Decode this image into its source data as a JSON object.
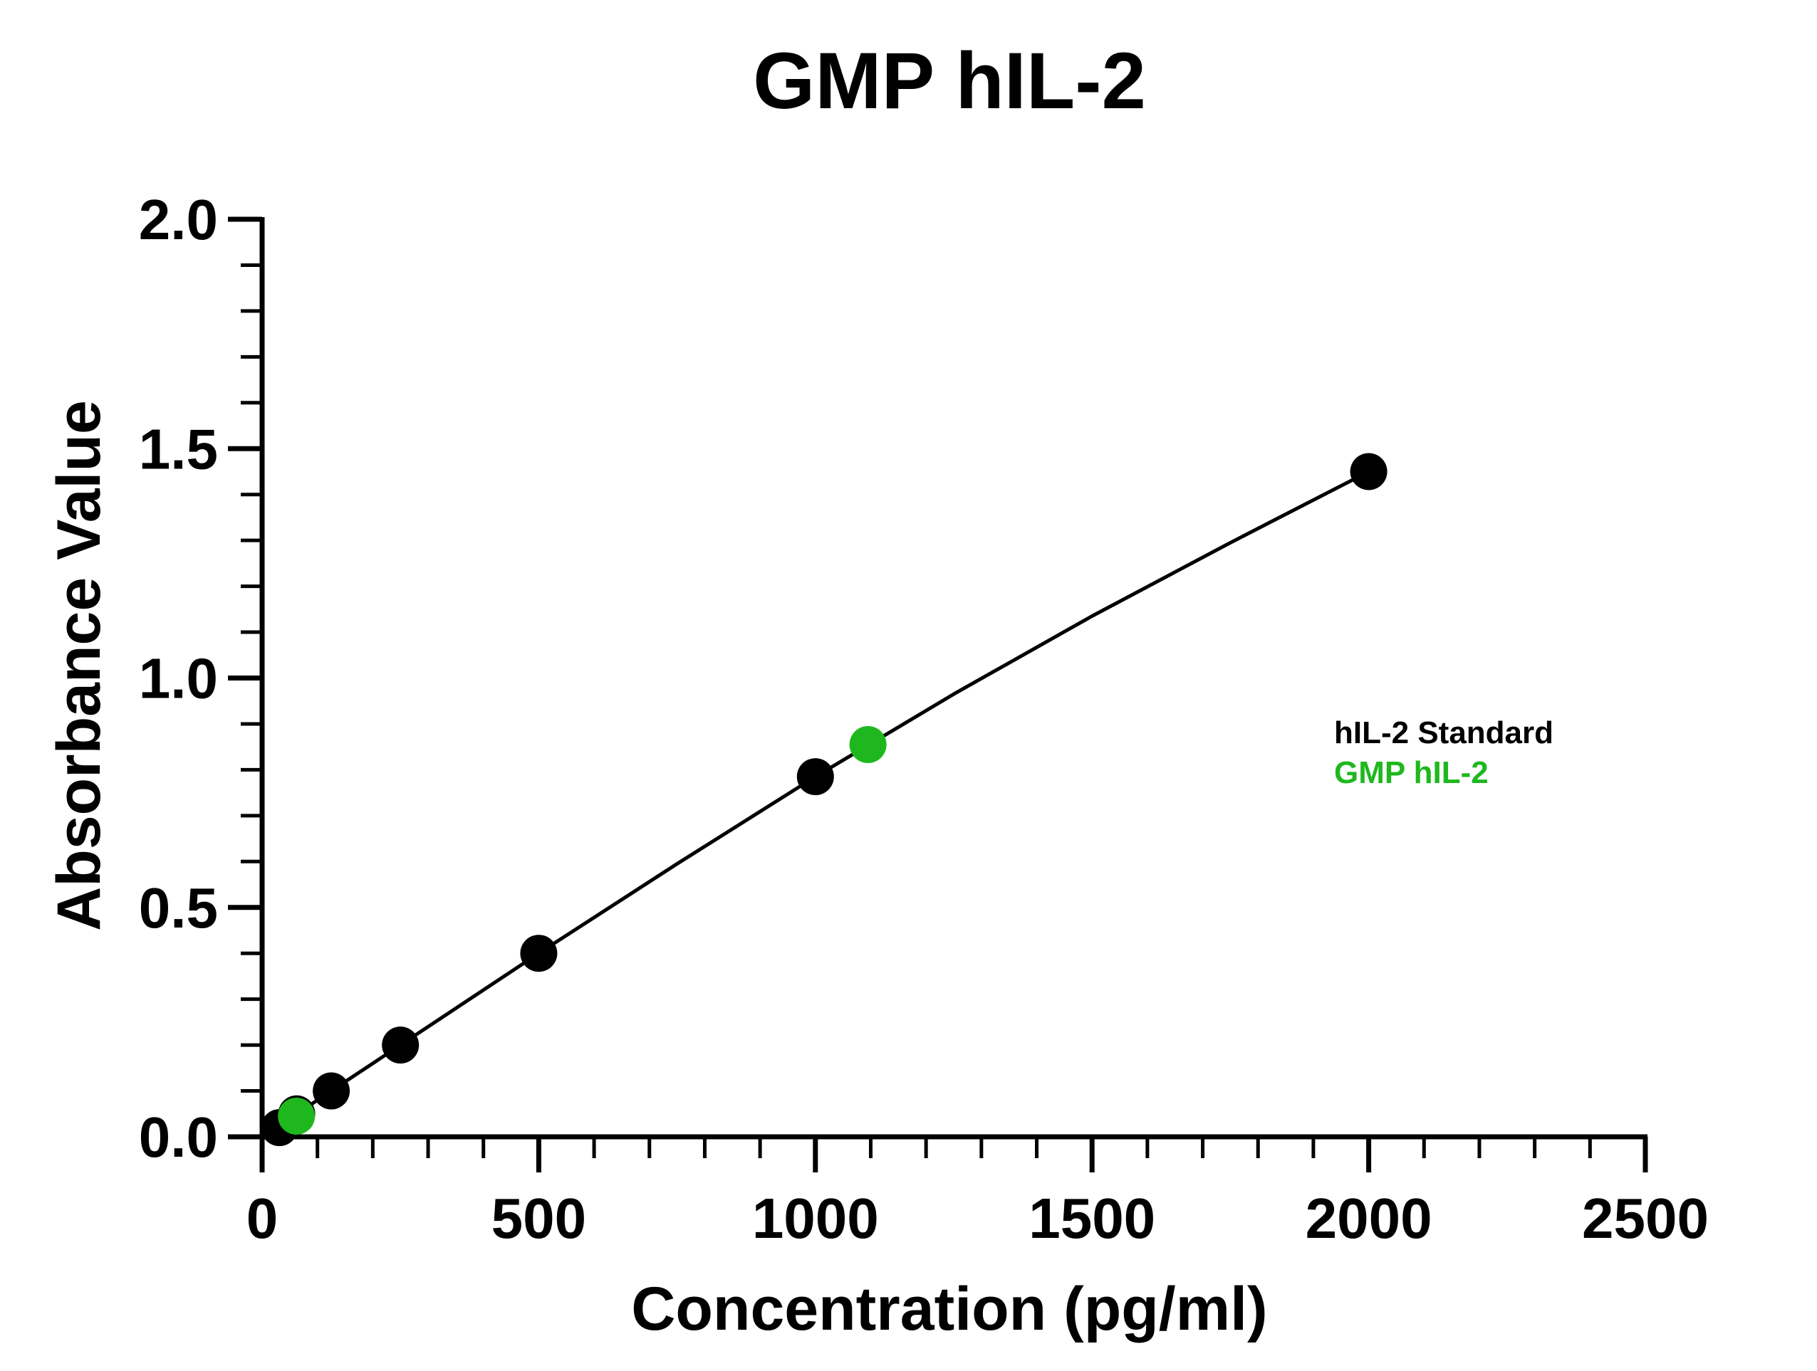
{
  "chart_data": {
    "type": "scatter",
    "title": "GMP hIL-2",
    "xlabel": "Concentration (pg/ml)",
    "ylabel": "Absorbance Value",
    "xlim": [
      0,
      2500
    ],
    "ylim": [
      0,
      2.0
    ],
    "x_ticks": [
      0,
      500,
      1000,
      1500,
      2000,
      2500
    ],
    "y_ticks": [
      0.0,
      0.5,
      1.0,
      1.5,
      2.0
    ],
    "x_tick_labels": [
      "0",
      "500",
      "1000",
      "1500",
      "2000",
      "2500"
    ],
    "y_tick_labels": [
      "0.0",
      "0.5",
      "1.0",
      "1.5",
      "2.0"
    ],
    "x_minor_step": 100,
    "y_minor_step": 0.1,
    "grid": false,
    "legend_position": "right",
    "series": [
      {
        "name": "hIL-2 Standard",
        "color": "#000000",
        "points": [
          {
            "x": 31.25,
            "y": 0.02
          },
          {
            "x": 62.5,
            "y": 0.05
          },
          {
            "x": 125,
            "y": 0.1
          },
          {
            "x": 250,
            "y": 0.2
          },
          {
            "x": 500,
            "y": 0.4
          },
          {
            "x": 1000,
            "y": 0.785
          },
          {
            "x": 2000,
            "y": 1.45
          }
        ]
      },
      {
        "name": "GMP hIL-2",
        "color": "#1eb81e",
        "points": [
          {
            "x": 62,
            "y": 0.045
          },
          {
            "x": 1095,
            "y": 0.855
          }
        ]
      }
    ],
    "fit_curve": {
      "color": "#000000",
      "x": [
        20,
        100,
        250,
        500,
        750,
        1000,
        1250,
        1500,
        1750,
        2000
      ],
      "y": [
        0.015,
        0.08,
        0.2,
        0.4,
        0.595,
        0.785,
        0.965,
        1.135,
        1.295,
        1.45
      ]
    }
  }
}
